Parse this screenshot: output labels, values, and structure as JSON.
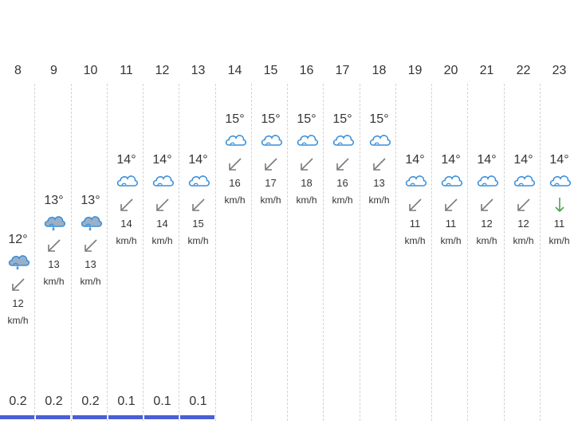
{
  "forecast": {
    "hours": [
      {
        "hour": "8",
        "temp": "12°",
        "icon": "rain-cloud-icon",
        "wind_dir": "southwest",
        "wind_speed": "12",
        "wind_unit": "km/h",
        "precip": "0.2"
      },
      {
        "hour": "9",
        "temp": "13°",
        "icon": "rain-cloud-icon",
        "wind_dir": "southwest",
        "wind_speed": "13",
        "wind_unit": "km/h",
        "precip": "0.2"
      },
      {
        "hour": "10",
        "temp": "13°",
        "icon": "rain-cloud-icon",
        "wind_dir": "southwest",
        "wind_speed": "13",
        "wind_unit": "km/h",
        "precip": "0.2"
      },
      {
        "hour": "11",
        "temp": "14°",
        "icon": "cloud-icon",
        "wind_dir": "southwest",
        "wind_speed": "14",
        "wind_unit": "km/h",
        "precip": "0.1"
      },
      {
        "hour": "12",
        "temp": "14°",
        "icon": "cloud-icon",
        "wind_dir": "southwest",
        "wind_speed": "14",
        "wind_unit": "km/h",
        "precip": "0.1"
      },
      {
        "hour": "13",
        "temp": "14°",
        "icon": "cloud-icon",
        "wind_dir": "southwest",
        "wind_speed": "15",
        "wind_unit": "km/h",
        "precip": "0.1"
      },
      {
        "hour": "14",
        "temp": "15°",
        "icon": "cloud-icon",
        "wind_dir": "southwest",
        "wind_speed": "16",
        "wind_unit": "km/h",
        "precip": ""
      },
      {
        "hour": "15",
        "temp": "15°",
        "icon": "cloud-icon",
        "wind_dir": "southwest",
        "wind_speed": "17",
        "wind_unit": "km/h",
        "precip": ""
      },
      {
        "hour": "16",
        "temp": "15°",
        "icon": "cloud-icon",
        "wind_dir": "southwest",
        "wind_speed": "18",
        "wind_unit": "km/h",
        "precip": ""
      },
      {
        "hour": "17",
        "temp": "15°",
        "icon": "cloud-icon",
        "wind_dir": "southwest",
        "wind_speed": "16",
        "wind_unit": "km/h",
        "precip": ""
      },
      {
        "hour": "18",
        "temp": "15°",
        "icon": "cloud-icon",
        "wind_dir": "southwest",
        "wind_speed": "13",
        "wind_unit": "km/h",
        "precip": ""
      },
      {
        "hour": "19",
        "temp": "14°",
        "icon": "cloud-icon",
        "wind_dir": "southwest",
        "wind_speed": "11",
        "wind_unit": "km/h",
        "precip": ""
      },
      {
        "hour": "20",
        "temp": "14°",
        "icon": "cloud-icon",
        "wind_dir": "southwest",
        "wind_speed": "11",
        "wind_unit": "km/h",
        "precip": ""
      },
      {
        "hour": "21",
        "temp": "14°",
        "icon": "cloud-icon",
        "wind_dir": "southwest",
        "wind_speed": "12",
        "wind_unit": "km/h",
        "precip": ""
      },
      {
        "hour": "22",
        "temp": "14°",
        "icon": "cloud-icon",
        "wind_dir": "southwest",
        "wind_speed": "12",
        "wind_unit": "km/h",
        "precip": ""
      },
      {
        "hour": "23",
        "temp": "14°",
        "icon": "cloud-icon",
        "wind_dir": "south",
        "wind_speed": "11",
        "wind_unit": "km/h",
        "precip": ""
      }
    ]
  },
  "colors": {
    "icon_stroke": "#3a8fd9",
    "rain_cloud_fill": "#9ab0c7",
    "arrow_southwest": "#7a7a7a",
    "arrow_south": "#4ea04e",
    "precip_bar": "#4a5fd6"
  }
}
